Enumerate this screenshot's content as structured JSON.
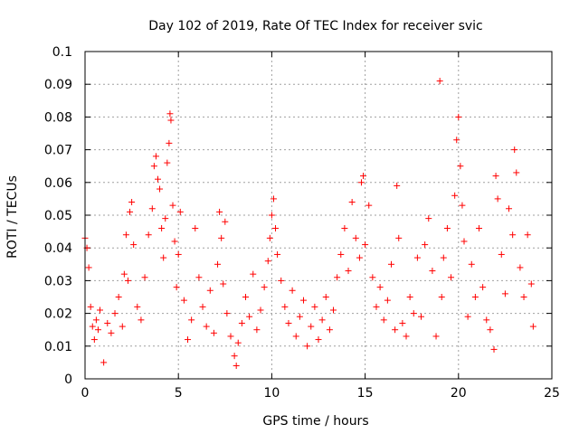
{
  "chart_data": {
    "type": "scatter",
    "title": "Day 102 of 2019, Rate Of TEC Index for receiver svic",
    "xlabel": "GPS time / hours",
    "ylabel": "ROTI / TECUs",
    "xlim": [
      0,
      25
    ],
    "ylim": [
      0,
      0.1
    ],
    "x_ticks": [
      0,
      5,
      10,
      15,
      20,
      25
    ],
    "x_tick_labels": [
      "0",
      "5",
      "10",
      "15",
      "20",
      "25"
    ],
    "y_ticks": [
      0,
      0.01,
      0.02,
      0.03,
      0.04,
      0.05,
      0.06,
      0.07,
      0.08,
      0.09,
      0.1
    ],
    "y_tick_labels": [
      "0",
      "0.01",
      "0.02",
      "0.03",
      "0.04",
      "0.05",
      "0.06",
      "0.07",
      "0.08",
      "0.09",
      "0.1"
    ],
    "grid": true,
    "marker": "+",
    "marker_color": "#ff0000",
    "series": [
      {
        "name": "ROTI",
        "x": [
          0.0,
          0.1,
          0.2,
          0.3,
          0.4,
          0.5,
          0.6,
          0.7,
          0.8,
          1.0,
          1.2,
          1.4,
          1.6,
          1.8,
          2.0,
          2.1,
          2.2,
          2.3,
          2.4,
          2.5,
          2.6,
          2.8,
          3.0,
          3.2,
          3.4,
          3.6,
          3.7,
          3.8,
          3.9,
          4.0,
          4.1,
          4.2,
          4.3,
          4.4,
          4.5,
          4.55,
          4.6,
          4.7,
          4.8,
          4.9,
          5.0,
          5.1,
          5.3,
          5.5,
          5.7,
          5.9,
          6.1,
          6.3,
          6.5,
          6.7,
          6.9,
          7.1,
          7.2,
          7.3,
          7.4,
          7.5,
          7.6,
          7.8,
          8.0,
          8.1,
          8.2,
          8.4,
          8.6,
          8.8,
          9.0,
          9.2,
          9.4,
          9.6,
          9.8,
          9.9,
          10.0,
          10.1,
          10.2,
          10.3,
          10.5,
          10.7,
          10.9,
          11.1,
          11.3,
          11.5,
          11.7,
          11.9,
          12.1,
          12.3,
          12.5,
          12.7,
          12.9,
          13.1,
          13.3,
          13.5,
          13.7,
          13.9,
          14.1,
          14.3,
          14.5,
          14.7,
          14.8,
          14.9,
          15.0,
          15.2,
          15.4,
          15.6,
          15.8,
          16.0,
          16.2,
          16.4,
          16.6,
          16.7,
          16.8,
          17.0,
          17.2,
          17.4,
          17.6,
          17.8,
          18.0,
          18.2,
          18.4,
          18.6,
          18.8,
          19.0,
          19.1,
          19.2,
          19.4,
          19.6,
          19.8,
          19.9,
          20.0,
          20.1,
          20.2,
          20.3,
          20.5,
          20.7,
          20.9,
          21.1,
          21.3,
          21.5,
          21.7,
          21.9,
          22.0,
          22.1,
          22.3,
          22.5,
          22.7,
          22.9,
          23.0,
          23.1,
          23.3,
          23.5,
          23.7,
          23.9,
          24.0
        ],
        "y": [
          0.043,
          0.04,
          0.034,
          0.022,
          0.016,
          0.012,
          0.018,
          0.015,
          0.021,
          0.005,
          0.017,
          0.014,
          0.02,
          0.025,
          0.016,
          0.032,
          0.044,
          0.03,
          0.051,
          0.054,
          0.041,
          0.022,
          0.018,
          0.031,
          0.044,
          0.052,
          0.065,
          0.068,
          0.061,
          0.058,
          0.046,
          0.037,
          0.049,
          0.066,
          0.072,
          0.081,
          0.079,
          0.053,
          0.042,
          0.028,
          0.038,
          0.051,
          0.024,
          0.012,
          0.018,
          0.046,
          0.031,
          0.022,
          0.016,
          0.027,
          0.014,
          0.035,
          0.051,
          0.043,
          0.029,
          0.048,
          0.02,
          0.013,
          0.007,
          0.004,
          0.011,
          0.017,
          0.025,
          0.019,
          0.032,
          0.015,
          0.021,
          0.028,
          0.036,
          0.043,
          0.05,
          0.055,
          0.046,
          0.038,
          0.03,
          0.022,
          0.017,
          0.027,
          0.013,
          0.019,
          0.024,
          0.01,
          0.016,
          0.022,
          0.012,
          0.018,
          0.025,
          0.015,
          0.021,
          0.031,
          0.038,
          0.046,
          0.033,
          0.054,
          0.043,
          0.037,
          0.06,
          0.062,
          0.041,
          0.053,
          0.031,
          0.022,
          0.028,
          0.018,
          0.024,
          0.035,
          0.015,
          0.059,
          0.043,
          0.017,
          0.013,
          0.025,
          0.02,
          0.037,
          0.019,
          0.041,
          0.049,
          0.033,
          0.013,
          0.091,
          0.025,
          0.037,
          0.046,
          0.031,
          0.056,
          0.073,
          0.08,
          0.065,
          0.053,
          0.042,
          0.019,
          0.035,
          0.025,
          0.046,
          0.028,
          0.018,
          0.015,
          0.009,
          0.062,
          0.055,
          0.038,
          0.026,
          0.052,
          0.044,
          0.07,
          0.063,
          0.034,
          0.025,
          0.044,
          0.029,
          0.016
        ]
      }
    ]
  }
}
